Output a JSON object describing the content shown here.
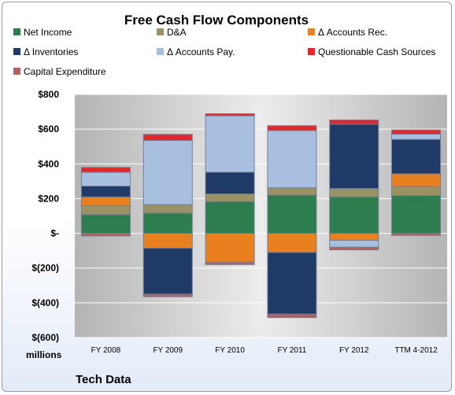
{
  "chart_data": {
    "type": "bar",
    "stacked": true,
    "title": "Free Cash Flow Components",
    "unit_label": "millions",
    "company": "Tech Data",
    "categories": [
      "FY 2008",
      "FY 2009",
      "FY 2010",
      "FY 2011",
      "FY 2012",
      "TTM 4-2012"
    ],
    "ylim": [
      -600,
      800
    ],
    "yticks": [
      800,
      600,
      400,
      200,
      0,
      -200,
      -400,
      -600
    ],
    "ytick_labels": [
      "$800",
      "$600",
      "$400",
      "$200",
      "$-",
      "$(200)",
      "$(400)",
      "$(600)"
    ],
    "grid": true,
    "legend_position": "top",
    "series": [
      {
        "name": "Net Income",
        "color": "#2e7d4f",
        "values": [
          108,
          117,
          183,
          220,
          210,
          218
        ]
      },
      {
        "name": "D&A",
        "color": "#9b9263",
        "values": [
          52,
          48,
          44,
          42,
          48,
          50
        ]
      },
      {
        "name": "Δ Accounts Rec.",
        "color": "#e8801f",
        "values": [
          50,
          -85,
          -165,
          -110,
          -40,
          75
        ]
      },
      {
        "name": "Δ Inventories",
        "color": "#1f3a66",
        "values": [
          62,
          -265,
          125,
          -355,
          370,
          198
        ]
      },
      {
        "name": "Δ Accounts Pay.",
        "color": "#a9bfe0",
        "values": [
          80,
          370,
          325,
          330,
          -40,
          30
        ]
      },
      {
        "name": "Questionable Cash Sources",
        "color": "#e8262a",
        "values": [
          28,
          35,
          12,
          28,
          25,
          25
        ]
      },
      {
        "name": "Capital Expenditure",
        "color": "#b46060",
        "values": [
          -15,
          -15,
          -15,
          -20,
          -15,
          -12
        ]
      }
    ]
  }
}
